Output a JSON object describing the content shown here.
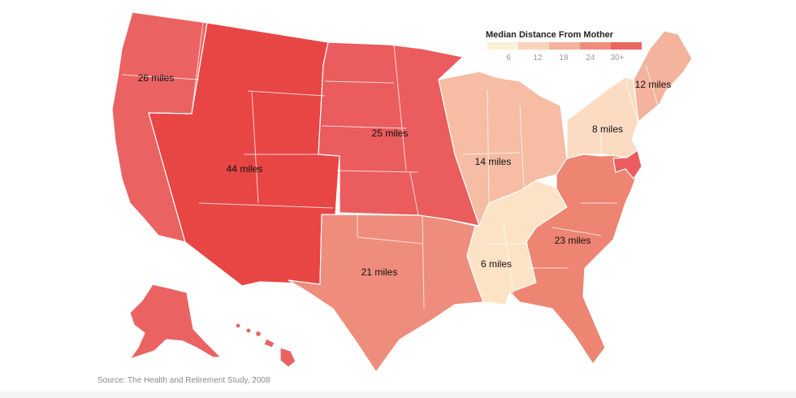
{
  "legend": {
    "title": "Median Distance From Mother",
    "ticks": [
      "6",
      "12",
      "18",
      "24",
      "30+"
    ],
    "colors": [
      "#fdf1d8",
      "#f9d3b9",
      "#f5b39d",
      "#ef8d7c",
      "#ea6660"
    ]
  },
  "regions": [
    {
      "id": "pacific",
      "label": "26 miles",
      "value": 26,
      "color": "#ea6362"
    },
    {
      "id": "mountain",
      "label": "44 miles",
      "value": 44,
      "color": "#e84644"
    },
    {
      "id": "west-north-central",
      "label": "25 miles",
      "value": 25,
      "color": "#ea5c5d"
    },
    {
      "id": "west-south-central",
      "label": "21 miles",
      "value": 21,
      "color": "#ef8d7c"
    },
    {
      "id": "east-north-central",
      "label": "14 miles",
      "value": 14,
      "color": "#f6bca4"
    },
    {
      "id": "east-south-central",
      "label": "6 miles",
      "value": 6,
      "color": "#fde3c6"
    },
    {
      "id": "south-atlantic",
      "label": "23 miles",
      "value": 23,
      "color": "#ee8472"
    },
    {
      "id": "middle-atlantic",
      "label": "8 miles",
      "value": 8,
      "color": "#fbdcc3"
    },
    {
      "id": "new-england",
      "label": "12 miles",
      "value": 12,
      "color": "#f4b39c"
    }
  ],
  "extra_colors": {
    "alaska": "#ea6362",
    "hawaii": "#ea6362",
    "maryland": "#ea5c5d"
  },
  "source": "Source: The Health and Retirement Study, 2008"
}
